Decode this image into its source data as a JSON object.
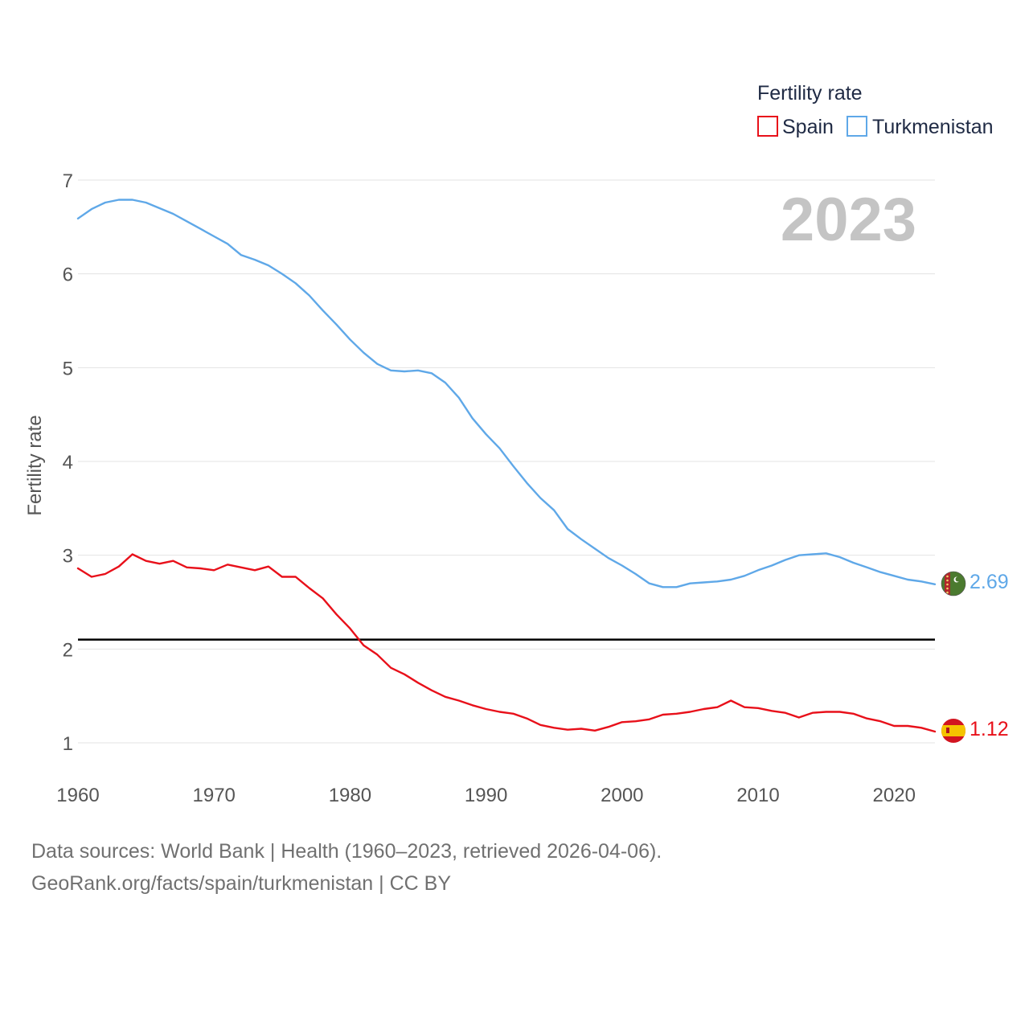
{
  "chart_data": {
    "type": "line",
    "title": "",
    "ylabel": "Fertility rate",
    "xlabel": "",
    "xlim": [
      1960,
      2023
    ],
    "ylim": [
      0.6,
      7.2
    ],
    "xticks": [
      1960,
      1970,
      1980,
      1990,
      2000,
      2010,
      2020
    ],
    "yticks": [
      1,
      2,
      3,
      4,
      5,
      6,
      7
    ],
    "grid": true,
    "legend": {
      "title": "Fertility rate",
      "placement": "top-right"
    },
    "current_year": "2023",
    "reference_line": {
      "value": 2.1
    },
    "x": [
      1960,
      1961,
      1962,
      1963,
      1964,
      1965,
      1966,
      1967,
      1968,
      1969,
      1970,
      1971,
      1972,
      1973,
      1974,
      1975,
      1976,
      1977,
      1978,
      1979,
      1980,
      1981,
      1982,
      1983,
      1984,
      1985,
      1986,
      1987,
      1988,
      1989,
      1990,
      1991,
      1992,
      1993,
      1994,
      1995,
      1996,
      1997,
      1998,
      1999,
      2000,
      2001,
      2002,
      2003,
      2004,
      2005,
      2006,
      2007,
      2008,
      2009,
      2010,
      2011,
      2012,
      2013,
      2014,
      2015,
      2016,
      2017,
      2018,
      2019,
      2020,
      2021,
      2022,
      2023
    ],
    "series": [
      {
        "name": "Spain",
        "color": "#e8101a",
        "end_label": "1.12",
        "values": [
          2.86,
          2.77,
          2.8,
          2.88,
          3.01,
          2.94,
          2.91,
          2.94,
          2.87,
          2.86,
          2.84,
          2.9,
          2.87,
          2.84,
          2.88,
          2.77,
          2.77,
          2.65,
          2.54,
          2.37,
          2.22,
          2.04,
          1.94,
          1.8,
          1.73,
          1.64,
          1.56,
          1.49,
          1.45,
          1.4,
          1.36,
          1.33,
          1.31,
          1.26,
          1.19,
          1.16,
          1.14,
          1.15,
          1.13,
          1.17,
          1.22,
          1.23,
          1.25,
          1.3,
          1.31,
          1.33,
          1.36,
          1.38,
          1.45,
          1.38,
          1.37,
          1.34,
          1.32,
          1.27,
          1.32,
          1.33,
          1.33,
          1.31,
          1.26,
          1.23,
          1.18,
          1.18,
          1.16,
          1.12
        ]
      },
      {
        "name": "Turkmenistan",
        "color": "#5fa8e8",
        "end_label": "2.69",
        "values": [
          6.59,
          6.69,
          6.76,
          6.79,
          6.79,
          6.76,
          6.7,
          6.64,
          6.56,
          6.48,
          6.4,
          6.32,
          6.2,
          6.15,
          6.09,
          6.0,
          5.9,
          5.77,
          5.61,
          5.46,
          5.3,
          5.16,
          5.04,
          4.97,
          4.96,
          4.97,
          4.94,
          4.84,
          4.68,
          4.46,
          4.29,
          4.14,
          3.95,
          3.77,
          3.61,
          3.48,
          3.28,
          3.17,
          3.07,
          2.97,
          2.89,
          2.8,
          2.7,
          2.66,
          2.66,
          2.7,
          2.71,
          2.72,
          2.74,
          2.78,
          2.84,
          2.89,
          2.95,
          3.0,
          3.01,
          3.02,
          2.98,
          2.92,
          2.87,
          2.82,
          2.78,
          2.74,
          2.72,
          2.69
        ]
      }
    ]
  },
  "source": {
    "line1": "Data sources: World Bank | Health (1960–2023, retrieved 2026-04-06).",
    "line2": "GeoRank.org/facts/spain/turkmenistan | CC BY"
  }
}
